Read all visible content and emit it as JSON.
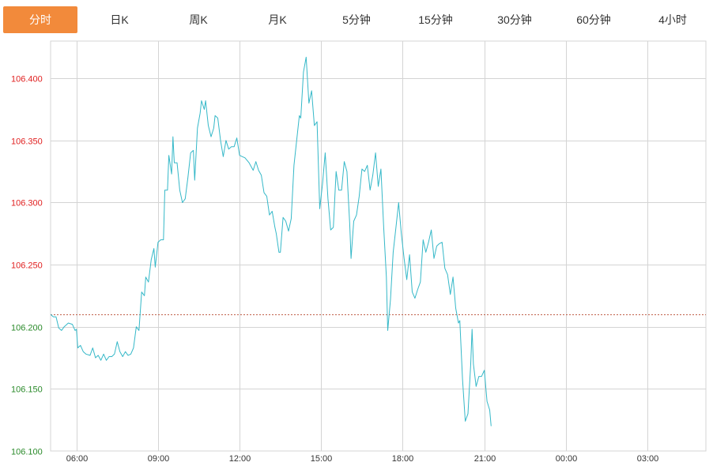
{
  "tabs": [
    {
      "label": "分时",
      "active": true
    },
    {
      "label": "日K",
      "active": false
    },
    {
      "label": "周K",
      "active": false
    },
    {
      "label": "月K",
      "active": false
    },
    {
      "label": "5分钟",
      "active": false
    },
    {
      "label": "15分钟",
      "active": false
    },
    {
      "label": "30分钟",
      "active": false
    },
    {
      "label": "60分钟",
      "active": false
    },
    {
      "label": "4小时",
      "active": false
    }
  ],
  "colors": {
    "active_tab": "#f28a3b",
    "line": "#35b8c8",
    "up_label": "#e02020",
    "down_label": "#2a8a2a",
    "grid": "#d4d4d4",
    "ref_line": "#c0604a"
  },
  "chart_data": {
    "type": "line",
    "title": "",
    "xlabel": "",
    "ylabel": "",
    "x_ticks": [
      "06:00",
      "09:00",
      "12:00",
      "15:00",
      "18:00",
      "21:00",
      "00:00",
      "03:00"
    ],
    "y_ticks": [
      "106.100",
      "106.150",
      "106.200",
      "106.250",
      "106.300",
      "106.350",
      "106.400"
    ],
    "ylim": [
      106.1,
      106.43
    ],
    "xlim_hours": [
      5.05,
      29.15
    ],
    "reference_price": 106.21,
    "grid": true,
    "series": [
      {
        "points": [
          [
            5.05,
            106.21
          ],
          [
            5.15,
            106.208
          ],
          [
            5.25,
            106.208
          ],
          [
            5.35,
            106.199
          ],
          [
            5.45,
            106.197
          ],
          [
            5.55,
            106.2
          ],
          [
            5.7,
            106.203
          ],
          [
            5.85,
            106.202
          ],
          [
            5.95,
            106.197
          ],
          [
            6.0,
            106.198
          ],
          [
            6.05,
            106.183
          ],
          [
            6.15,
            106.185
          ],
          [
            6.25,
            106.18
          ],
          [
            6.35,
            106.178
          ],
          [
            6.5,
            106.177
          ],
          [
            6.6,
            106.183
          ],
          [
            6.7,
            106.175
          ],
          [
            6.8,
            106.177
          ],
          [
            6.9,
            106.173
          ],
          [
            7.0,
            106.178
          ],
          [
            7.1,
            106.173
          ],
          [
            7.2,
            106.176
          ],
          [
            7.3,
            106.176
          ],
          [
            7.4,
            106.178
          ],
          [
            7.5,
            106.188
          ],
          [
            7.6,
            106.18
          ],
          [
            7.7,
            106.176
          ],
          [
            7.8,
            106.18
          ],
          [
            7.9,
            106.177
          ],
          [
            8.0,
            106.178
          ],
          [
            8.1,
            106.183
          ],
          [
            8.2,
            106.2
          ],
          [
            8.3,
            106.197
          ],
          [
            8.4,
            106.228
          ],
          [
            8.5,
            106.225
          ],
          [
            8.55,
            106.24
          ],
          [
            8.65,
            106.236
          ],
          [
            8.75,
            106.254
          ],
          [
            8.85,
            106.263
          ],
          [
            8.9,
            106.248
          ],
          [
            9.0,
            106.268
          ],
          [
            9.1,
            106.27
          ],
          [
            9.2,
            106.27
          ],
          [
            9.25,
            106.31
          ],
          [
            9.35,
            106.31
          ],
          [
            9.4,
            106.338
          ],
          [
            9.5,
            106.323
          ],
          [
            9.55,
            106.353
          ],
          [
            9.6,
            106.332
          ],
          [
            9.7,
            106.332
          ],
          [
            9.8,
            106.31
          ],
          [
            9.9,
            106.3
          ],
          [
            10.0,
            106.303
          ],
          [
            10.1,
            106.32
          ],
          [
            10.2,
            106.34
          ],
          [
            10.3,
            106.342
          ],
          [
            10.35,
            106.318
          ],
          [
            10.45,
            106.36
          ],
          [
            10.55,
            106.372
          ],
          [
            10.6,
            106.382
          ],
          [
            10.7,
            106.375
          ],
          [
            10.75,
            106.382
          ],
          [
            10.85,
            106.362
          ],
          [
            10.95,
            106.353
          ],
          [
            11.05,
            106.36
          ],
          [
            11.1,
            106.37
          ],
          [
            11.2,
            106.368
          ],
          [
            11.3,
            106.35
          ],
          [
            11.4,
            106.337
          ],
          [
            11.5,
            106.35
          ],
          [
            11.6,
            106.343
          ],
          [
            11.7,
            106.345
          ],
          [
            11.8,
            106.345
          ],
          [
            11.9,
            106.352
          ],
          [
            12.0,
            106.338
          ],
          [
            12.1,
            106.337
          ],
          [
            12.2,
            106.336
          ],
          [
            12.35,
            106.332
          ],
          [
            12.5,
            106.326
          ],
          [
            12.6,
            106.333
          ],
          [
            12.7,
            106.326
          ],
          [
            12.8,
            106.322
          ],
          [
            12.9,
            106.308
          ],
          [
            13.0,
            106.305
          ],
          [
            13.1,
            106.29
          ],
          [
            13.2,
            106.293
          ],
          [
            13.3,
            106.28
          ],
          [
            13.35,
            106.275
          ],
          [
            13.45,
            106.26
          ],
          [
            13.5,
            106.26
          ],
          [
            13.6,
            106.288
          ],
          [
            13.7,
            106.285
          ],
          [
            13.8,
            106.277
          ],
          [
            13.9,
            106.287
          ],
          [
            14.0,
            106.33
          ],
          [
            14.1,
            106.35
          ],
          [
            14.2,
            106.37
          ],
          [
            14.25,
            106.368
          ],
          [
            14.35,
            106.405
          ],
          [
            14.45,
            106.417
          ],
          [
            14.55,
            106.38
          ],
          [
            14.65,
            106.39
          ],
          [
            14.75,
            106.362
          ],
          [
            14.85,
            106.365
          ],
          [
            14.95,
            106.295
          ],
          [
            15.05,
            106.315
          ],
          [
            15.15,
            106.34
          ],
          [
            15.25,
            106.303
          ],
          [
            15.35,
            106.278
          ],
          [
            15.45,
            106.28
          ],
          [
            15.55,
            106.325
          ],
          [
            15.65,
            106.31
          ],
          [
            15.75,
            106.31
          ],
          [
            15.85,
            106.333
          ],
          [
            15.95,
            106.325
          ],
          [
            16.05,
            106.283
          ],
          [
            16.1,
            106.255
          ],
          [
            16.2,
            106.285
          ],
          [
            16.3,
            106.29
          ],
          [
            16.4,
            106.305
          ],
          [
            16.5,
            106.327
          ],
          [
            16.6,
            106.325
          ],
          [
            16.7,
            106.33
          ],
          [
            16.8,
            106.31
          ],
          [
            16.9,
            106.322
          ],
          [
            17.0,
            106.34
          ],
          [
            17.1,
            106.313
          ],
          [
            17.2,
            106.327
          ],
          [
            17.3,
            106.28
          ],
          [
            17.4,
            106.24
          ],
          [
            17.45,
            106.197
          ],
          [
            17.55,
            106.222
          ],
          [
            17.65,
            106.26
          ],
          [
            17.75,
            106.28
          ],
          [
            17.85,
            106.3
          ],
          [
            17.95,
            106.275
          ],
          [
            18.05,
            106.255
          ],
          [
            18.15,
            106.238
          ],
          [
            18.25,
            106.258
          ],
          [
            18.35,
            106.228
          ],
          [
            18.45,
            106.223
          ],
          [
            18.55,
            106.23
          ],
          [
            18.65,
            106.236
          ],
          [
            18.75,
            106.27
          ],
          [
            18.85,
            106.26
          ],
          [
            18.95,
            106.268
          ],
          [
            19.05,
            106.278
          ],
          [
            19.15,
            106.255
          ],
          [
            19.25,
            106.265
          ],
          [
            19.35,
            106.267
          ],
          [
            19.45,
            106.268
          ],
          [
            19.55,
            106.247
          ],
          [
            19.65,
            106.242
          ],
          [
            19.75,
            106.226
          ],
          [
            19.85,
            106.24
          ],
          [
            19.95,
            106.215
          ],
          [
            20.05,
            106.203
          ],
          [
            20.1,
            106.205
          ],
          [
            20.2,
            106.158
          ],
          [
            20.3,
            106.124
          ],
          [
            20.4,
            106.13
          ],
          [
            20.5,
            106.17
          ],
          [
            20.55,
            106.198
          ],
          [
            20.6,
            106.17
          ],
          [
            20.7,
            106.152
          ],
          [
            20.8,
            106.16
          ],
          [
            20.9,
            106.16
          ],
          [
            21.0,
            106.165
          ],
          [
            21.1,
            106.14
          ],
          [
            21.2,
            106.133
          ],
          [
            21.25,
            106.12
          ]
        ]
      }
    ]
  }
}
